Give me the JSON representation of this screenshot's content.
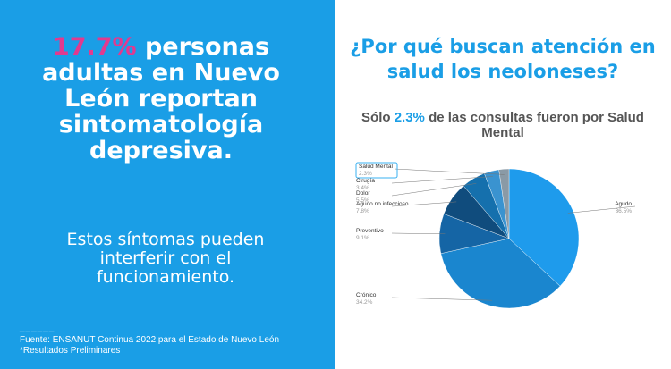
{
  "left": {
    "headline_pct": "17.7%",
    "headline_rest": " personas adultas en Nuevo León reportan sintomatología depresiva.",
    "sub": "Estos síntomas pueden interferir con el funcionamiento.",
    "dash": "______",
    "source_line1": "Fuente: ENSANUT Continua 2022 para el Estado de Nuevo León",
    "source_line2": "*Resultados Preliminares"
  },
  "right": {
    "question": "¿Por qué buscan atención en salud los neoloneses?",
    "stat_prefix": "Sólo ",
    "stat_pct": "2.3%",
    "stat_suffix": " de las consultas fueron por Salud Mental"
  },
  "colors": {
    "left_bg": "#1a9ee6",
    "highlight": "#e23a8f",
    "accent": "#1a9ee6"
  },
  "chart_data": {
    "type": "pie",
    "start": "Agudo clockwise from top",
    "slices": [
      {
        "label": "Agudo",
        "pct_text": "36.5%",
        "value": 36.5,
        "color": "#1e9bec"
      },
      {
        "label": "Crónico",
        "pct_text": "34.2%",
        "value": 34.2,
        "color": "#1a86cf"
      },
      {
        "label": "Preventivo",
        "pct_text": "9.1%",
        "value": 9.1,
        "color": "#1565a5"
      },
      {
        "label": "Agudo no infeccioso",
        "pct_text": "7.8%",
        "value": 7.8,
        "color": "#104c7d"
      },
      {
        "label": "Dolor",
        "pct_text": "5.5%",
        "value": 5.5,
        "color": "#1570ad"
      },
      {
        "label": "Cirugía",
        "pct_text": "3.4%",
        "value": 3.4,
        "color": "#3a93d0"
      },
      {
        "label": "Salud Mental",
        "pct_text": "2.3%",
        "value": 2.3,
        "color": "#8a9aa6"
      }
    ]
  }
}
